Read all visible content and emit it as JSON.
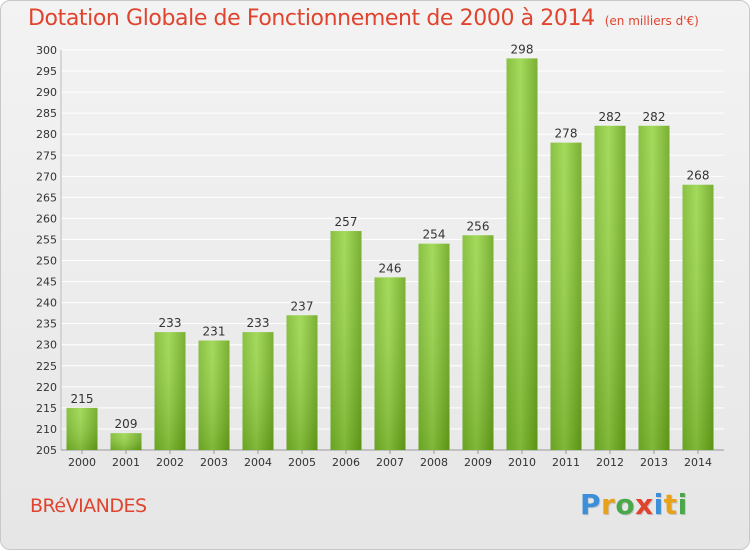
{
  "title": "Dotation Globale de Fonctionnement de 2000 à 2014",
  "subtitle": "(en milliers d'€)",
  "commune": "BRéVIANDES",
  "logo": "Proxiti",
  "colors": {
    "title": "#e0442e",
    "bar_light": "#9ad64a",
    "bar_dark": "#5f9a14",
    "grid": "#ffffff"
  },
  "chart_data": {
    "type": "bar",
    "title": "Dotation Globale de Fonctionnement de 2000 à 2014",
    "xlabel": "",
    "ylabel": "",
    "ylim": [
      205,
      300
    ],
    "ytick_step": 5,
    "grid": true,
    "categories": [
      "2000",
      "2001",
      "2002",
      "2003",
      "2004",
      "2005",
      "2006",
      "2007",
      "2008",
      "2009",
      "2010",
      "2011",
      "2012",
      "2013",
      "2014"
    ],
    "values": [
      215,
      209,
      233,
      231,
      233,
      237,
      257,
      246,
      254,
      256,
      298,
      278,
      282,
      282,
      268
    ]
  }
}
